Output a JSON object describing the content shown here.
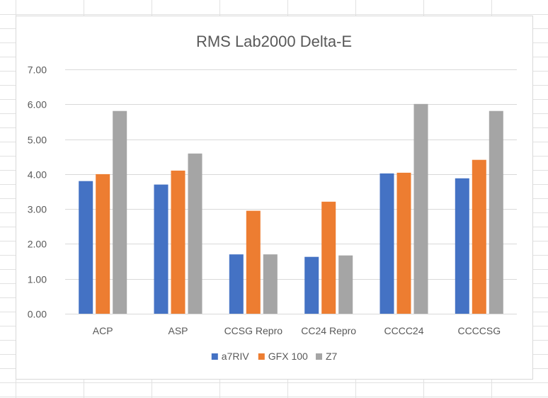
{
  "colors": {
    "grid": "#d9d9d9",
    "sheet_grid": "#e1e1e1",
    "text": "#595959",
    "series": [
      "#4472c4",
      "#ed7d31",
      "#a5a5a5"
    ]
  },
  "chart_data": {
    "type": "bar",
    "title": "RMS Lab2000 Delta-E",
    "xlabel": "",
    "ylabel": "",
    "categories": [
      "ACP",
      "ASP",
      "CCSG Repro",
      "CC24 Repro",
      "CCCC24",
      "CCCCSG"
    ],
    "series": [
      {
        "name": "a7RIV",
        "values": [
          3.8,
          3.7,
          1.7,
          1.63,
          4.02,
          3.88
        ]
      },
      {
        "name": "GFX 100",
        "values": [
          4.0,
          4.1,
          2.95,
          3.21,
          4.04,
          4.41
        ]
      },
      {
        "name": "Z7",
        "values": [
          5.81,
          4.59,
          1.7,
          1.67,
          6.01,
          5.81
        ]
      }
    ],
    "ylim": [
      0,
      7
    ],
    "yticks": [
      "0.00",
      "1.00",
      "2.00",
      "3.00",
      "4.00",
      "5.00",
      "6.00",
      "7.00"
    ],
    "grid": true,
    "legend": "bottom"
  }
}
